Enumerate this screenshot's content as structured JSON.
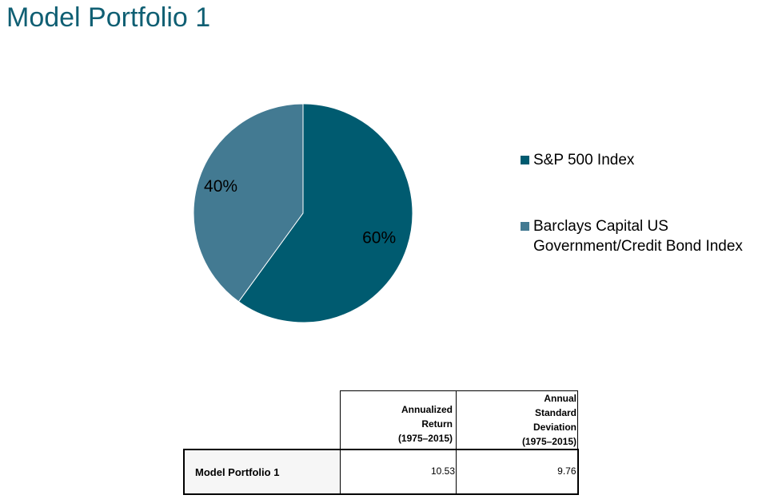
{
  "page": {
    "title": "Model Portfolio 1"
  },
  "chart_data": {
    "type": "pie",
    "title": "",
    "slices": [
      {
        "label": "S&P 500 Index",
        "value": 60,
        "display": "60%",
        "color": "#005b70"
      },
      {
        "label": "Barclays Capital US Government/Credit Bond Index",
        "value": 40,
        "display": "40%",
        "color": "#437a92"
      }
    ],
    "legend_position": "right",
    "start_angle_deg": 0,
    "direction": "clockwise"
  },
  "table": {
    "headers": {
      "col1": [
        "Annualized",
        "Return",
        "(1975–2015)"
      ],
      "col2": [
        "Annual",
        "Standard",
        "Deviation",
        "(1975–2015)"
      ]
    },
    "rows": [
      {
        "label": "Model Portfolio 1",
        "annualized_return": "10.53",
        "annual_std_dev": "9.76"
      }
    ]
  }
}
